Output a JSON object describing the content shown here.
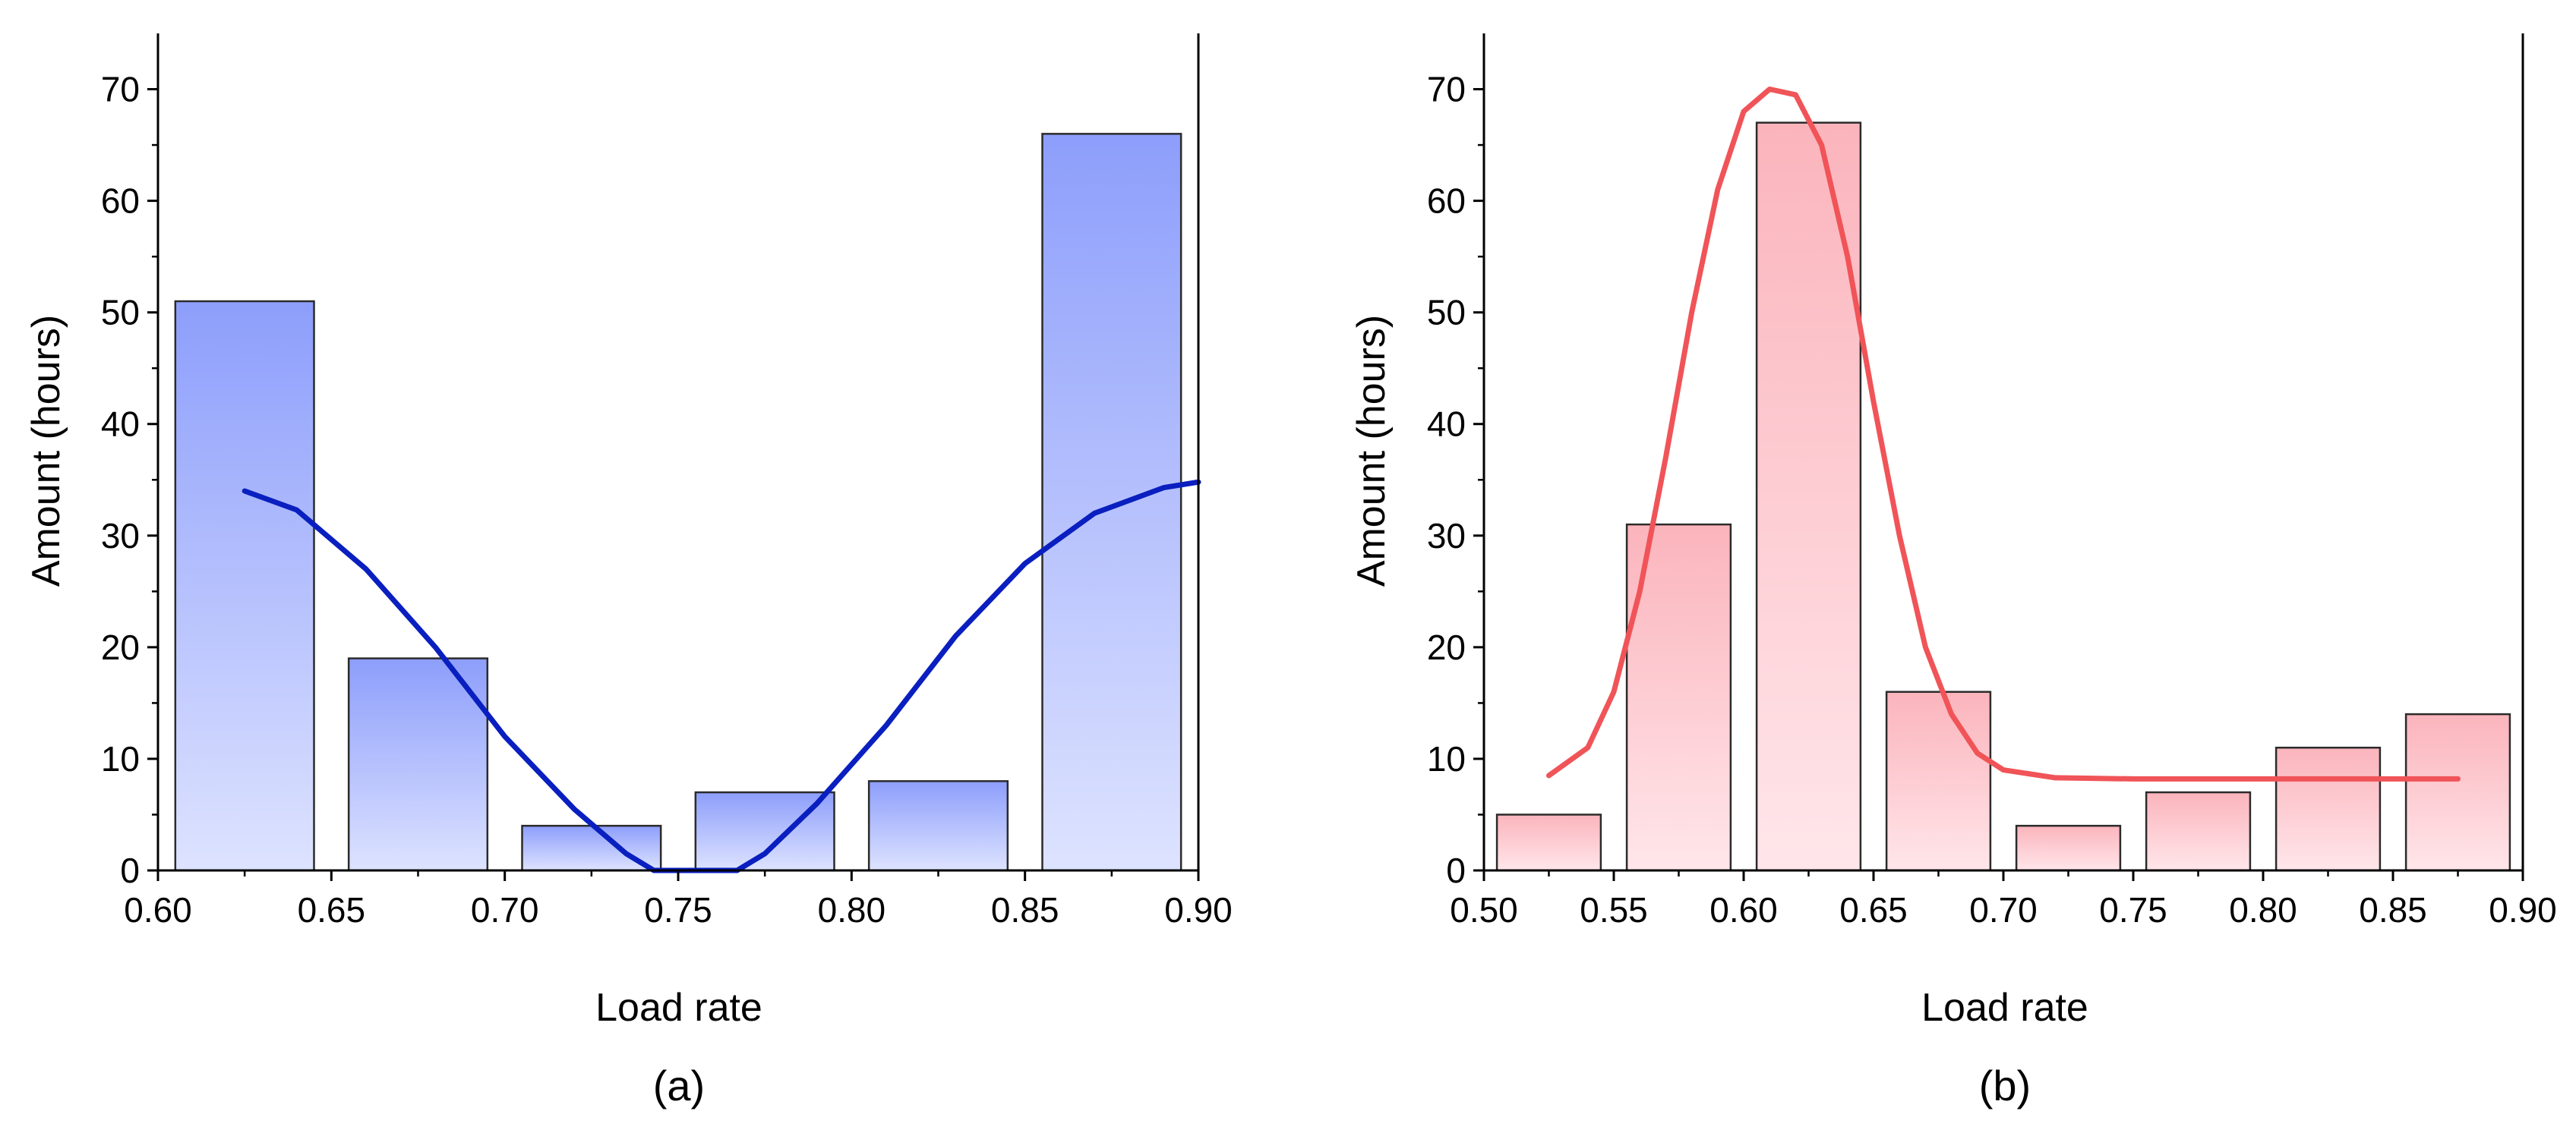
{
  "chart_data": [
    {
      "type": "bar",
      "panel_label": "(a)",
      "xlabel": "Load rate",
      "ylabel": "Amount (hours)",
      "xlim": [
        0.6,
        0.9
      ],
      "ylim": [
        0,
        75
      ],
      "xticks": [
        0.6,
        0.65,
        0.7,
        0.75,
        0.8,
        0.85,
        0.9
      ],
      "xtick_labels": [
        "0.60",
        "0.65",
        "0.70",
        "0.75",
        "0.80",
        "0.85",
        "0.90"
      ],
      "yticks": [
        0,
        10,
        20,
        30,
        40,
        50,
        60,
        70
      ],
      "ytick_labels": [
        "0",
        "10",
        "20",
        "30",
        "40",
        "50",
        "60",
        "70"
      ],
      "bin_width": 0.05,
      "bins": [
        {
          "x0": 0.6,
          "x1": 0.65,
          "value": 51
        },
        {
          "x0": 0.65,
          "x1": 0.7,
          "value": 19
        },
        {
          "x0": 0.7,
          "x1": 0.75,
          "value": 4
        },
        {
          "x0": 0.75,
          "x1": 0.8,
          "value": 7
        },
        {
          "x0": 0.8,
          "x1": 0.85,
          "value": 8
        },
        {
          "x0": 0.85,
          "x1": 0.9,
          "value": 66
        }
      ],
      "fit_curve": {
        "color": "#0a1fbf",
        "points": [
          [
            0.625,
            34
          ],
          [
            0.64,
            32.3
          ],
          [
            0.66,
            27
          ],
          [
            0.68,
            20
          ],
          [
            0.7,
            12
          ],
          [
            0.72,
            5.5
          ],
          [
            0.735,
            1.5
          ],
          [
            0.743,
            0
          ],
          [
            0.767,
            0
          ],
          [
            0.775,
            1.5
          ],
          [
            0.79,
            6
          ],
          [
            0.81,
            13
          ],
          [
            0.83,
            21
          ],
          [
            0.85,
            27.5
          ],
          [
            0.87,
            32
          ],
          [
            0.89,
            34.3
          ],
          [
            0.9,
            34.8
          ]
        ]
      },
      "bar_gradient": {
        "top": "#8d9efb",
        "bottom": "#dde3ff"
      },
      "grid": false,
      "legend": "none"
    },
    {
      "type": "bar",
      "panel_label": "(b)",
      "xlabel": "Load rate",
      "ylabel": "Amount (hours)",
      "xlim": [
        0.5,
        0.9
      ],
      "ylim": [
        0,
        75
      ],
      "xticks": [
        0.5,
        0.55,
        0.6,
        0.65,
        0.7,
        0.75,
        0.8,
        0.85,
        0.9
      ],
      "xtick_labels": [
        "0.50",
        "0.55",
        "0.60",
        "0.65",
        "0.70",
        "0.75",
        "0.80",
        "0.85",
        "0.90"
      ],
      "yticks": [
        0,
        10,
        20,
        30,
        40,
        50,
        60,
        70
      ],
      "ytick_labels": [
        "0",
        "10",
        "20",
        "30",
        "40",
        "50",
        "60",
        "70"
      ],
      "bin_width": 0.05,
      "bins": [
        {
          "x0": 0.5,
          "x1": 0.55,
          "value": 5
        },
        {
          "x0": 0.55,
          "x1": 0.6,
          "value": 31
        },
        {
          "x0": 0.6,
          "x1": 0.65,
          "value": 67
        },
        {
          "x0": 0.65,
          "x1": 0.7,
          "value": 16
        },
        {
          "x0": 0.7,
          "x1": 0.75,
          "value": 4
        },
        {
          "x0": 0.75,
          "x1": 0.8,
          "value": 7
        },
        {
          "x0": 0.8,
          "x1": 0.85,
          "value": 11
        },
        {
          "x0": 0.85,
          "x1": 0.9,
          "value": 14
        }
      ],
      "fit_curve": {
        "color": "#f05458",
        "points": [
          [
            0.525,
            8.5
          ],
          [
            0.54,
            11
          ],
          [
            0.55,
            16
          ],
          [
            0.56,
            25
          ],
          [
            0.57,
            37
          ],
          [
            0.58,
            50
          ],
          [
            0.59,
            61
          ],
          [
            0.6,
            68
          ],
          [
            0.61,
            70
          ],
          [
            0.62,
            69.5
          ],
          [
            0.63,
            65
          ],
          [
            0.64,
            55
          ],
          [
            0.65,
            42
          ],
          [
            0.66,
            30
          ],
          [
            0.67,
            20
          ],
          [
            0.68,
            14
          ],
          [
            0.69,
            10.5
          ],
          [
            0.7,
            9
          ],
          [
            0.72,
            8.3
          ],
          [
            0.75,
            8.2
          ],
          [
            0.8,
            8.2
          ],
          [
            0.85,
            8.2
          ],
          [
            0.875,
            8.2
          ]
        ]
      },
      "bar_gradient": {
        "top": "#fbb4bc",
        "bottom": "#ffe6ea"
      },
      "grid": false,
      "legend": "none"
    }
  ]
}
